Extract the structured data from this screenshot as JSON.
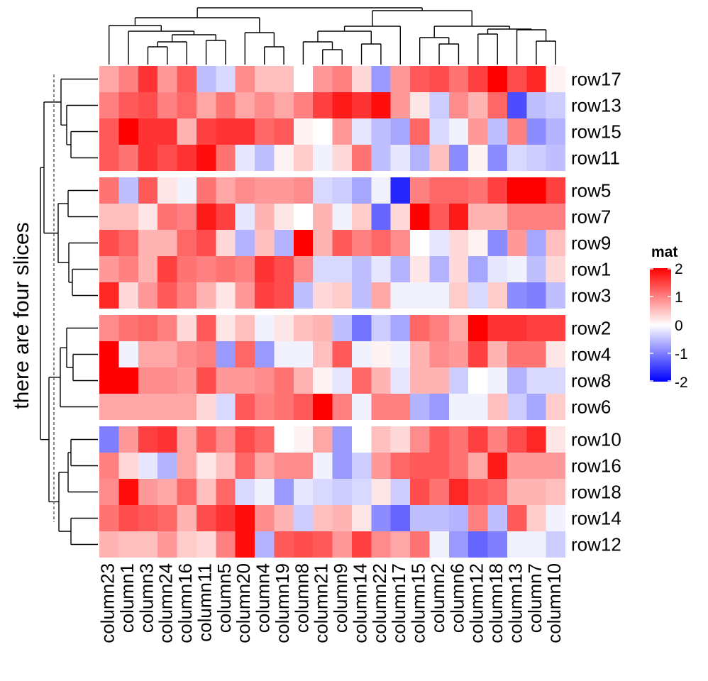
{
  "chart_data": {
    "type": "heatmap",
    "title": "",
    "slice_title": "there are four slices",
    "columns": [
      "column23",
      "column1",
      "column3",
      "column24",
      "column16",
      "column11",
      "column5",
      "column20",
      "column4",
      "column19",
      "column8",
      "column21",
      "column9",
      "column14",
      "column22",
      "column17",
      "column15",
      "column2",
      "column6",
      "column12",
      "column18",
      "column13",
      "column7",
      "column10"
    ],
    "row_slices": [
      {
        "rows": [
          "row17",
          "row13",
          "row15",
          "row11"
        ],
        "values": [
          [
            0.7,
            1.0,
            1.6,
            0.8,
            1.3,
            -0.5,
            -0.3,
            0.9,
            0.5,
            0.5,
            0.0,
            0.8,
            1.0,
            0.3,
            -0.8,
            0.8,
            1.3,
            1.4,
            1.1,
            1.5,
            2.2,
            1.4,
            1.7,
            0.1
          ],
          [
            1.0,
            1.3,
            1.4,
            1.0,
            1.2,
            0.7,
            1.1,
            0.7,
            0.9,
            0.7,
            1.0,
            1.5,
            1.8,
            1.6,
            1.9,
            0.8,
            0.2,
            -0.4,
            0.9,
            0.6,
            1.2,
            -1.4,
            -0.5,
            -0.4
          ],
          [
            1.3,
            2.0,
            1.6,
            1.6,
            0.6,
            1.5,
            1.6,
            1.6,
            1.2,
            1.3,
            0.1,
            0.0,
            0.8,
            -0.2,
            -0.5,
            -0.7,
            1.2,
            -0.3,
            -0.1,
            0.8,
            -0.5,
            1.0,
            -0.9,
            -0.6
          ],
          [
            1.3,
            1.1,
            1.6,
            1.4,
            1.6,
            1.9,
            1.1,
            -0.2,
            -0.5,
            0.1,
            0.4,
            -0.1,
            0.3,
            1.1,
            -0.5,
            -0.2,
            -0.6,
            0.5,
            -0.9,
            0.1,
            -0.9,
            -0.3,
            -0.4,
            -0.5
          ]
        ]
      },
      {
        "rows": [
          "row5",
          "row7",
          "row9",
          "row1",
          "row3"
        ],
        "values": [
          [
            1.1,
            -0.5,
            1.3,
            0.2,
            -0.1,
            1.1,
            0.7,
            0.9,
            0.8,
            0.8,
            0.9,
            -0.3,
            -0.4,
            -0.7,
            -0.1,
            -1.7,
            1.0,
            1.2,
            1.2,
            1.1,
            1.5,
            2.1,
            2.1,
            1.5
          ],
          [
            0.5,
            0.5,
            0.2,
            1.1,
            1.0,
            1.8,
            1.5,
            -0.2,
            0.6,
            0.2,
            0.0,
            0.6,
            -0.1,
            0.4,
            -1.2,
            0.3,
            2.2,
            1.3,
            1.8,
            0.6,
            0.6,
            1.0,
            1.0,
            1.0
          ],
          [
            1.4,
            1.2,
            0.6,
            0.6,
            1.2,
            1.4,
            0.3,
            -0.6,
            0.5,
            -0.6,
            2.1,
            0.6,
            1.3,
            1.0,
            1.2,
            0.9,
            0.0,
            -0.2,
            0.3,
            0.1,
            -0.9,
            0.8,
            -0.7,
            0.5
          ],
          [
            0.8,
            1.0,
            0.6,
            1.5,
            1.1,
            1.0,
            1.1,
            1.0,
            1.6,
            1.4,
            0.9,
            -0.3,
            -0.3,
            -0.5,
            -0.2,
            -0.6,
            0.2,
            -0.6,
            0.3,
            -0.7,
            -0.2,
            -0.1,
            -0.5,
            0.3
          ],
          [
            1.7,
            0.3,
            0.8,
            1.3,
            1.0,
            0.6,
            0.2,
            0.8,
            1.5,
            1.4,
            -0.5,
            0.3,
            0.4,
            -0.5,
            0.7,
            -0.1,
            -0.1,
            -0.1,
            0.4,
            -0.3,
            0.4,
            -0.9,
            -1.0,
            -0.5
          ]
        ]
      },
      {
        "rows": [
          "row2",
          "row4",
          "row8",
          "row6"
        ],
        "values": [
          [
            0.9,
            1.1,
            1.2,
            1.0,
            0.3,
            1.3,
            0.2,
            0.5,
            -0.1,
            0.2,
            0.5,
            0.6,
            -0.5,
            -1.1,
            -0.4,
            -0.7,
            1.2,
            1.0,
            0.7,
            2.2,
            1.6,
            1.6,
            1.5,
            1.5
          ],
          [
            2.0,
            -0.1,
            0.7,
            0.7,
            0.9,
            1.0,
            -0.8,
            1.2,
            -0.8,
            -0.1,
            -0.1,
            0.5,
            1.3,
            -0.1,
            0.1,
            -0.1,
            0.6,
            0.9,
            0.8,
            1.5,
            0.6,
            1.1,
            1.1,
            0.2
          ],
          [
            2.1,
            2.2,
            0.9,
            0.9,
            0.8,
            1.4,
            0.8,
            0.8,
            0.9,
            1.1,
            0.6,
            0.1,
            -0.2,
            1.2,
            0.6,
            -0.2,
            0.6,
            0.6,
            -0.4,
            0.0,
            -0.1,
            -0.6,
            -0.3,
            -0.3
          ],
          [
            0.7,
            0.7,
            0.7,
            0.7,
            0.7,
            0.3,
            -0.3,
            1.3,
            1.0,
            1.1,
            1.3,
            2.1,
            1.0,
            -0.1,
            1.0,
            1.0,
            -0.6,
            -0.8,
            -0.1,
            -0.1,
            0.5,
            -0.4,
            -0.7,
            0.4
          ]
        ]
      },
      {
        "rows": [
          "row10",
          "row16",
          "row18",
          "row14",
          "row12"
        ],
        "values": [
          [
            -1.0,
            0.8,
            1.5,
            1.6,
            0.7,
            1.3,
            0.9,
            1.4,
            1.2,
            0.0,
            0.1,
            0.7,
            -0.8,
            0.0,
            0.5,
            0.3,
            0.9,
            1.3,
            1.1,
            1.5,
            1.0,
            1.4,
            1.7,
            0.2
          ],
          [
            1.0,
            0.3,
            -0.2,
            -0.6,
            0.7,
            0.2,
            0.5,
            1.2,
            0.7,
            0.9,
            0.9,
            -0.1,
            -0.8,
            -0.4,
            0.8,
            1.2,
            1.3,
            1.3,
            1.1,
            0.7,
            1.8,
            0.8,
            0.8,
            0.8
          ],
          [
            0.9,
            1.9,
            0.8,
            0.7,
            1.2,
            0.5,
            1.2,
            -0.3,
            -0.1,
            -0.8,
            -0.2,
            -0.3,
            -0.4,
            -0.3,
            0.2,
            -0.4,
            1.4,
            1.1,
            1.7,
            1.3,
            1.2,
            0.6,
            0.6,
            0.5
          ],
          [
            1.1,
            1.4,
            1.3,
            1.2,
            0.6,
            1.4,
            1.6,
            1.9,
            0.9,
            0.6,
            -0.4,
            0.5,
            0.6,
            0.2,
            -0.9,
            -1.2,
            -0.5,
            -0.5,
            -0.6,
            1.0,
            -0.5,
            1.3,
            0.4,
            -0.1
          ],
          [
            0.6,
            0.5,
            0.5,
            0.8,
            0.4,
            0.3,
            1.0,
            1.9,
            -0.6,
            1.3,
            1.4,
            1.3,
            0.8,
            1.5,
            0.9,
            0.7,
            1.1,
            -0.1,
            -0.8,
            -1.2,
            -1.0,
            -0.1,
            -0.1,
            -0.4
          ]
        ]
      }
    ],
    "legend": {
      "title": "mat",
      "ticks": [
        2,
        1,
        0,
        -1,
        -2
      ],
      "tick_labels": [
        "2",
        "1",
        "0",
        "-1",
        "-2"
      ],
      "colors": {
        "high": "#ff0000",
        "mid": "#ffffff",
        "low": "#0000ff"
      },
      "range": [
        -2,
        2
      ],
      "placement": "right"
    }
  }
}
